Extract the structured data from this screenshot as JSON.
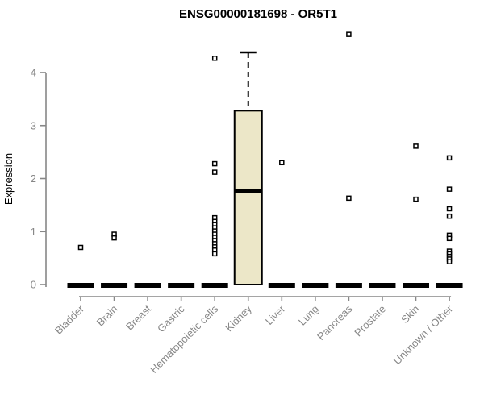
{
  "chart_data": {
    "type": "boxplot",
    "title": "ENSG00000181698 - OR5T1",
    "ylabel": "Expression",
    "xlabel": "",
    "ylim": [
      0,
      4.75
    ],
    "yticks": [
      0,
      1,
      2,
      3,
      4
    ],
    "grid": false,
    "legend": false,
    "categories": [
      "Bladder",
      "Brain",
      "Breast",
      "Gastric",
      "Hematopoietic cells",
      "Kidney",
      "Liver",
      "Lung",
      "Pancreas",
      "Prostate",
      "Skin",
      "Unknown / Other"
    ],
    "boxes": [
      {
        "category": "Bladder",
        "min": 0,
        "q1": 0,
        "median": 0,
        "q3": 0,
        "max": 0,
        "outliers": [
          0.7
        ]
      },
      {
        "category": "Brain",
        "min": 0,
        "q1": 0,
        "median": 0,
        "q3": 0,
        "max": 0,
        "outliers": [
          0.95,
          0.88
        ]
      },
      {
        "category": "Breast",
        "min": 0,
        "q1": 0,
        "median": 0,
        "q3": 0,
        "max": 0,
        "outliers": []
      },
      {
        "category": "Gastric",
        "min": 0,
        "q1": 0,
        "median": 0,
        "q3": 0,
        "max": 0,
        "outliers": []
      },
      {
        "category": "Hematopoietic cells",
        "min": 0,
        "q1": 0,
        "median": 0,
        "q3": 0,
        "max": 0,
        "outliers": [
          4.27,
          2.28,
          2.12,
          1.26,
          1.19,
          1.13,
          1.07,
          1.01,
          0.95,
          0.89,
          0.83,
          0.77,
          0.71,
          0.65,
          0.58
        ]
      },
      {
        "category": "Kidney",
        "min": 0,
        "q1": 0,
        "median": 1.77,
        "q3": 3.28,
        "max": 4.38,
        "outliers": []
      },
      {
        "category": "Liver",
        "min": 0,
        "q1": 0,
        "median": 0,
        "q3": 0,
        "max": 0,
        "outliers": [
          2.3
        ]
      },
      {
        "category": "Lung",
        "min": 0,
        "q1": 0,
        "median": 0,
        "q3": 0,
        "max": 0,
        "outliers": []
      },
      {
        "category": "Pancreas",
        "min": 0,
        "q1": 0,
        "median": 0,
        "q3": 0,
        "max": 0,
        "outliers": [
          4.72,
          1.63
        ]
      },
      {
        "category": "Prostate",
        "min": 0,
        "q1": 0,
        "median": 0,
        "q3": 0,
        "max": 0,
        "outliers": []
      },
      {
        "category": "Skin",
        "min": 0,
        "q1": 0,
        "median": 0,
        "q3": 0,
        "max": 0,
        "outliers": [
          2.61,
          1.61
        ]
      },
      {
        "category": "Unknown / Other",
        "min": 0,
        "q1": 0,
        "median": 0,
        "q3": 0,
        "max": 0,
        "outliers": [
          2.39,
          1.8,
          1.43,
          1.29,
          0.93,
          0.87,
          0.63,
          0.58,
          0.53,
          0.48,
          0.43
        ]
      }
    ],
    "colors": {
      "box_fill": "#ECE7C8",
      "box_stroke": "#000000",
      "median": "#000000",
      "outlier_stroke": "#000000",
      "outlier_fill": "#ffffff",
      "axis": "#878787",
      "tick_label": "#878787",
      "title": "#000000",
      "background": "#ffffff"
    }
  }
}
